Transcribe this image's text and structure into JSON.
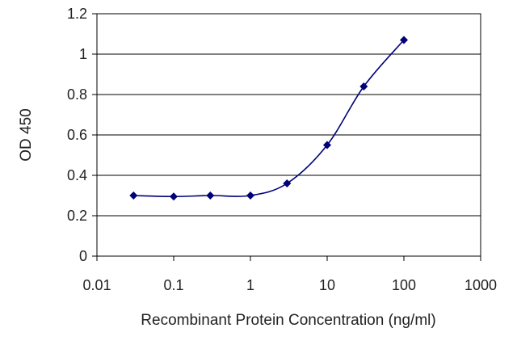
{
  "chart_data": {
    "type": "line",
    "xscale": "log",
    "xlabel": "Recombinant Protein Concentration (ng/ml)",
    "ylabel": "OD 450",
    "xlim": [
      0.01,
      1000
    ],
    "ylim": [
      0,
      1.2
    ],
    "xticks": [
      0.01,
      0.1,
      1,
      10,
      100,
      1000
    ],
    "xtick_labels": [
      "0.01",
      "0.1",
      "1",
      "10",
      "100",
      "1000"
    ],
    "yticks": [
      0,
      0.2,
      0.4,
      0.6,
      0.8,
      1,
      1.2
    ],
    "ytick_labels": [
      "0",
      "0.2",
      "0.4",
      "0.6",
      "0.8",
      "1",
      "1.2"
    ],
    "grid": "horizontal",
    "legend": "none",
    "series": [
      {
        "x": [
          0.03,
          0.1,
          0.3,
          1,
          3,
          10,
          30,
          100
        ],
        "y": [
          0.3,
          0.295,
          0.3,
          0.3,
          0.36,
          0.55,
          0.84,
          1.07
        ],
        "color": "#00007a"
      }
    ]
  }
}
